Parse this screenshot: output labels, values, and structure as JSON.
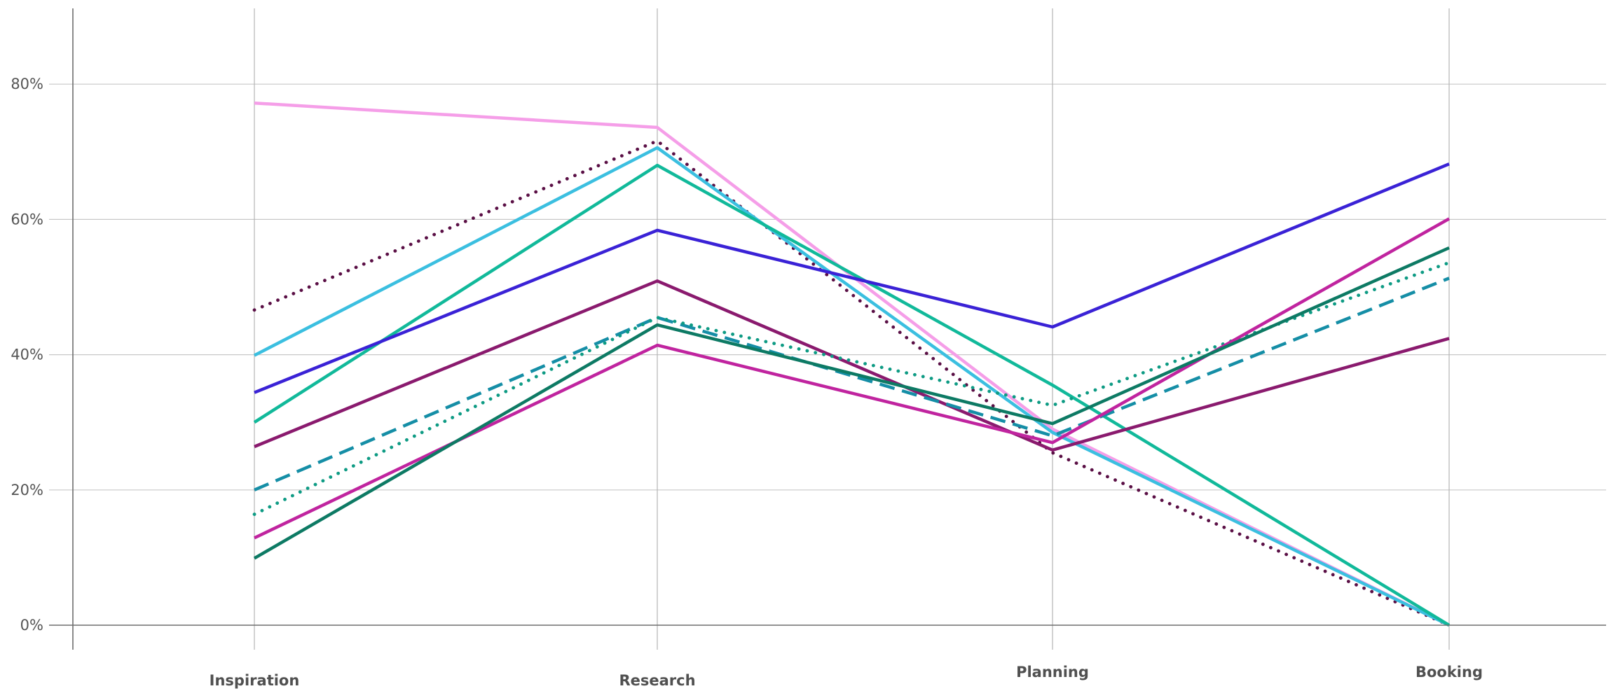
{
  "chart_data": {
    "type": "line",
    "title": "",
    "xlabel": "",
    "ylabel": "",
    "categories": [
      "Inspiration",
      "Research",
      "Planning",
      "Booking"
    ],
    "y_ticks": [
      "0%",
      "20%",
      "40%",
      "60%",
      "80%"
    ],
    "ylim": [
      0,
      90
    ],
    "grid": true,
    "legend": "none",
    "series": [
      {
        "values": [
          77.2,
          73.6,
          29.0,
          0.0
        ],
        "color": "#f59ee8",
        "dash": "solid"
      },
      {
        "values": [
          46.6,
          71.6,
          25.5,
          0.0
        ],
        "color": "#5a0f45",
        "dash": "dotted"
      },
      {
        "values": [
          39.9,
          70.6,
          28.5,
          0.0
        ],
        "color": "#3bbfe0",
        "dash": "solid"
      },
      {
        "values": [
          30.0,
          68.0,
          35.5,
          0.0
        ],
        "color": "#11b99a",
        "dash": "solid"
      },
      {
        "values": [
          34.4,
          58.4,
          44.1,
          68.2
        ],
        "color": "#3a22d6",
        "dash": "solid"
      },
      {
        "values": [
          26.4,
          50.9,
          25.9,
          42.4
        ],
        "color": "#8a1a6e",
        "dash": "solid"
      },
      {
        "values": [
          20.0,
          45.5,
          28.0,
          51.3
        ],
        "color": "#158ea6",
        "dash": "dashed"
      },
      {
        "values": [
          16.4,
          45.5,
          32.5,
          53.6
        ],
        "color": "#0e9b84",
        "dash": "dotted"
      },
      {
        "values": [
          12.9,
          41.4,
          27.0,
          60.1
        ],
        "color": "#c0249f",
        "dash": "solid"
      },
      {
        "values": [
          9.9,
          44.4,
          29.8,
          55.8
        ],
        "color": "#0d7a64",
        "dash": "solid"
      }
    ]
  }
}
